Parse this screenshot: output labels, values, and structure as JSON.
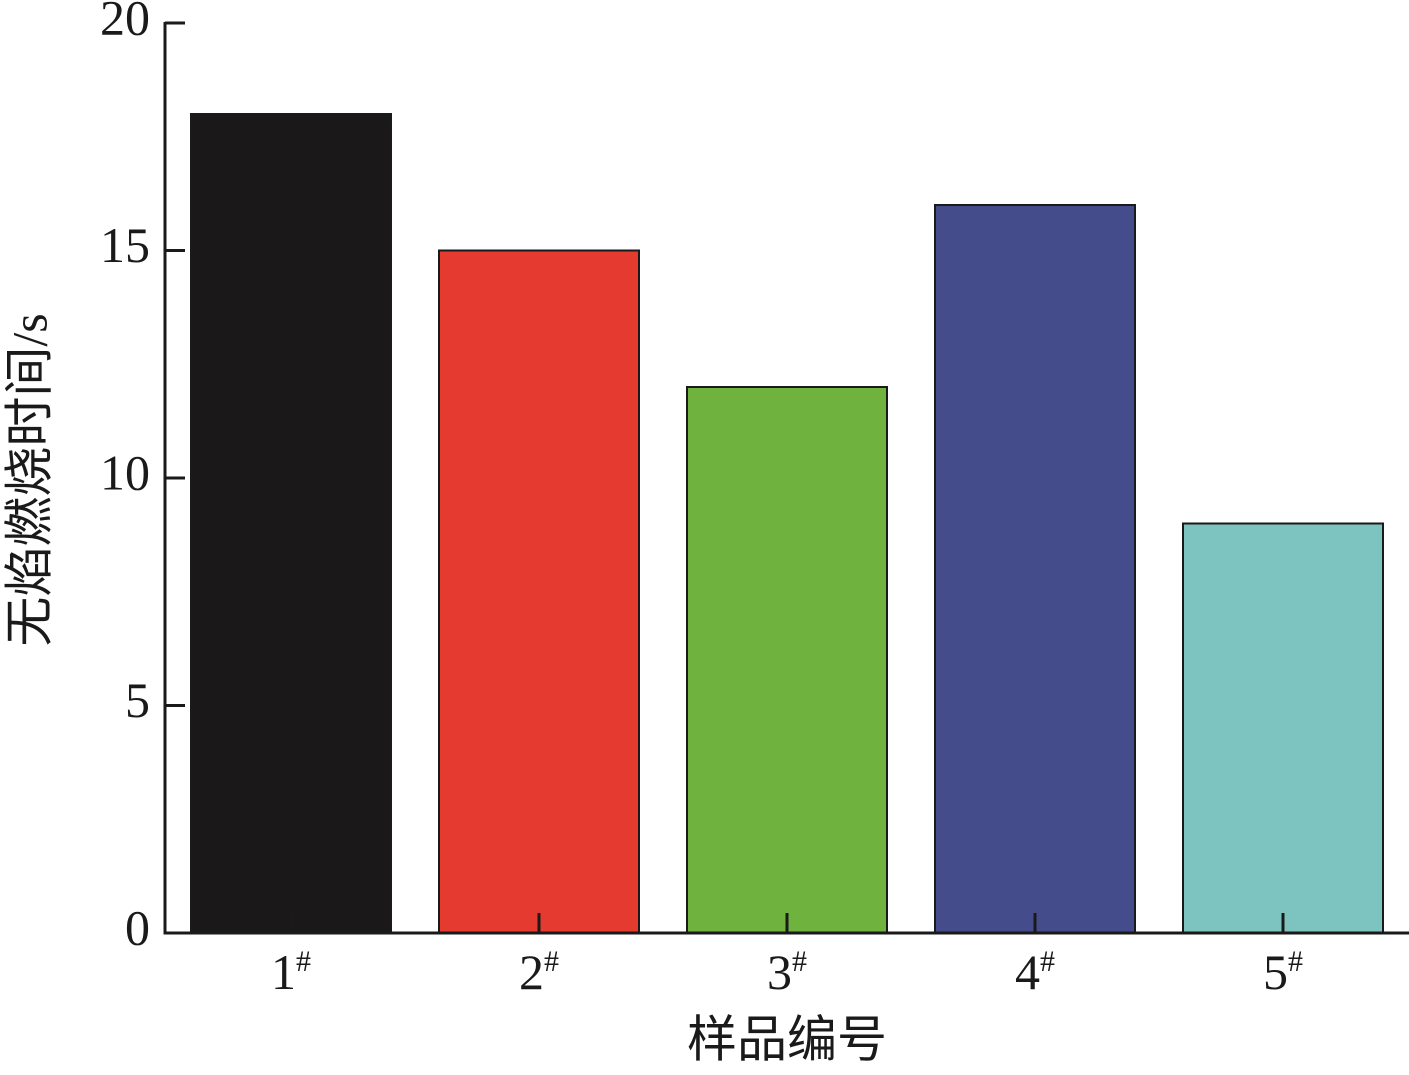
{
  "chart_data": {
    "type": "bar",
    "y_label": "无焰燃烧时间/s",
    "x_label": "样品编号",
    "categories": [
      "1#",
      "2#",
      "3#",
      "4#",
      "5#"
    ],
    "values": [
      18,
      15,
      12,
      16,
      9
    ],
    "colors": [
      "#1a1819",
      "#e53a30",
      "#6fb23d",
      "#444c8c",
      "#7dc4c1"
    ],
    "ylim": [
      0,
      20
    ],
    "yticks": [
      0,
      5,
      10,
      15,
      20
    ],
    "grid": false
  }
}
